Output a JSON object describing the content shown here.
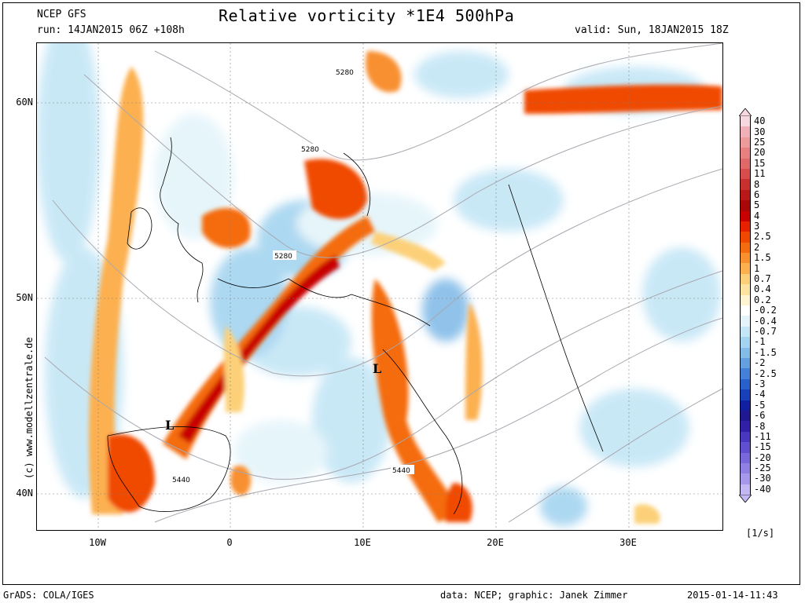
{
  "header": {
    "model": "NCEP GFS",
    "run": "run: 14JAN2015 06Z +108h",
    "title": "Relative vorticity *1E4 500hPa",
    "valid": "valid: Sun, 18JAN2015 18Z"
  },
  "map": {
    "lat_labels": [
      "60N",
      "50N",
      "40N"
    ],
    "lon_labels": [
      "10W",
      "0",
      "10E",
      "20E",
      "30E"
    ],
    "contour_labels": [
      "5280",
      "5280",
      "5280",
      "5440",
      "5440"
    ],
    "low_markers": [
      "L",
      "L"
    ]
  },
  "legend": {
    "unit": "[1/s]",
    "levels": [
      {
        "label": "40",
        "color": "#f8d8e0"
      },
      {
        "label": "30",
        "color": "#f0b0b8"
      },
      {
        "label": "25",
        "color": "#ec9a9a"
      },
      {
        "label": "20",
        "color": "#e88080"
      },
      {
        "label": "15",
        "color": "#e06868"
      },
      {
        "label": "11",
        "color": "#d84c4c"
      },
      {
        "label": "8",
        "color": "#c83030"
      },
      {
        "label": "6",
        "color": "#b81818"
      },
      {
        "label": "5",
        "color": "#a80808"
      },
      {
        "label": "4",
        "color": "#c80000"
      },
      {
        "label": "3",
        "color": "#e82000"
      },
      {
        "label": "2.5",
        "color": "#f04800"
      },
      {
        "label": "2",
        "color": "#f46c10"
      },
      {
        "label": "1.5",
        "color": "#f89030"
      },
      {
        "label": "1",
        "color": "#fcb050"
      },
      {
        "label": "0.7",
        "color": "#fcd078"
      },
      {
        "label": "0.4",
        "color": "#fce4a0"
      },
      {
        "label": "0.2",
        "color": "#fef4d0"
      },
      {
        "label": "-0.2",
        "color": "#ffffff"
      },
      {
        "label": "-0.4",
        "color": "#e4f4fa"
      },
      {
        "label": "-0.7",
        "color": "#c4e6f6"
      },
      {
        "label": "-1",
        "color": "#a4d4f0"
      },
      {
        "label": "-1.5",
        "color": "#84bce8"
      },
      {
        "label": "-2",
        "color": "#64a0e0"
      },
      {
        "label": "-2.5",
        "color": "#4480d8"
      },
      {
        "label": "-3",
        "color": "#2860cc"
      },
      {
        "label": "-4",
        "color": "#1840b8"
      },
      {
        "label": "-5",
        "color": "#1020a0"
      },
      {
        "label": "-6",
        "color": "#201890"
      },
      {
        "label": "-8",
        "color": "#3020a8"
      },
      {
        "label": "-11",
        "color": "#4838c0"
      },
      {
        "label": "-15",
        "color": "#6050d0"
      },
      {
        "label": "-20",
        "color": "#7868dc"
      },
      {
        "label": "-25",
        "color": "#9080e4"
      },
      {
        "label": "-30",
        "color": "#a898ec"
      },
      {
        "label": "-40",
        "color": "#c4b8f4"
      }
    ]
  },
  "footer": {
    "left": "GrADS: COLA/IGES",
    "credits": "data: NCEP; graphic: Janek Zimmer",
    "timestamp": "2015-01-14-11:43"
  },
  "watermark": "(c) www.modellzentrale.de"
}
